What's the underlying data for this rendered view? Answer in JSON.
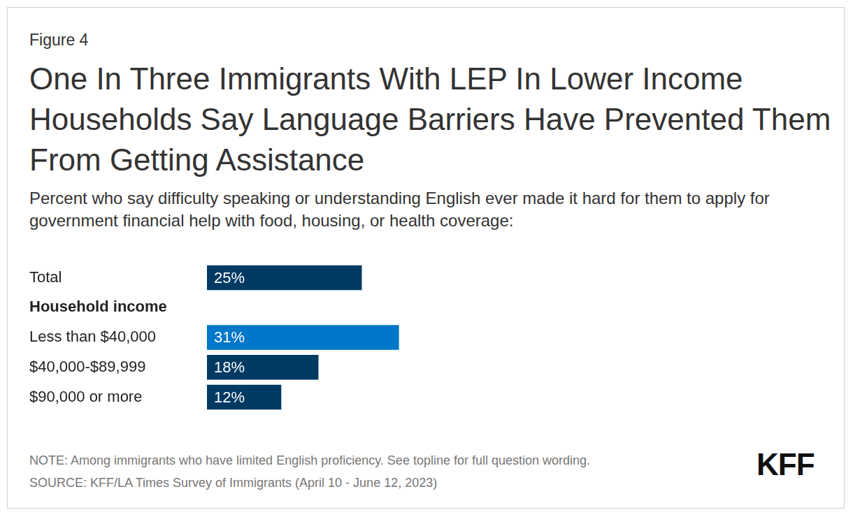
{
  "chart_data": {
    "type": "bar",
    "figure_label": "Figure 4",
    "title": "One In Three Immigrants With LEP In Lower Income Households Say Language Barriers Have Prevented Them From Getting Assistance",
    "subtitle": "Percent who say difficulty speaking or understanding English ever made it hard for them to apply for government financial help with food, housing, or health coverage:",
    "categories": [
      "Total",
      "Household income",
      "Less than $40,000",
      "$40,000-$89,999",
      "$90,000 or more"
    ],
    "values": [
      25,
      null,
      31,
      18,
      12
    ],
    "value_labels": [
      "25%",
      null,
      "31%",
      "18%",
      "12%"
    ],
    "colors": [
      "#003a63",
      null,
      "#0077c8",
      "#003a63",
      "#003a63"
    ],
    "orientation": "horizontal",
    "data_labels": true,
    "tick_labels": "y",
    "grid": false,
    "xlim": [
      0,
      100
    ],
    "notes": [
      "NOTE: Among immigrants who have limited English proficiency. See topline for full question wording.",
      "SOURCE: KFF/LA Times Survey of Immigrants (April 10 - June 12, 2023)"
    ],
    "logo": "KFF"
  }
}
